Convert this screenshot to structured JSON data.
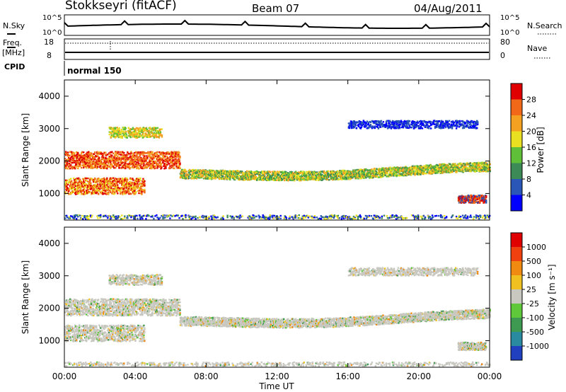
{
  "header": {
    "title": "Stokkseyri (fitACF)",
    "beam": "Beam 07",
    "date": "04/Aug/2011"
  },
  "status_panels": {
    "nsky_label": "N.Sky",
    "nsky_ticks": [
      "10^5",
      "10^0"
    ],
    "nsearch_label": "N.Search",
    "nsearch_ticks": [
      "10^5",
      "10^0"
    ],
    "freq_label": "Freq.",
    "freq_unit": "[MHz]",
    "freq_ticks": [
      "18",
      "8"
    ],
    "nave_label": "Nave",
    "nave_ticks": [
      "80",
      "0"
    ],
    "cpid_label": "CPID",
    "cpid_value": "normal 150"
  },
  "chart_data": [
    {
      "type": "heatmap",
      "name": "power",
      "ylabel": "Slant Range [km]",
      "xlabel": "Time UT",
      "xlim_hours": [
        0,
        24
      ],
      "ylim_km": [
        180,
        4500
      ],
      "yticks": [
        "4000",
        "3000",
        "2000",
        "1000"
      ],
      "xticks": [
        "00:00",
        "04:00",
        "08:00",
        "12:00",
        "16:00",
        "20:00",
        "00:00"
      ],
      "colorbar": {
        "label": "Power [dB]",
        "ticks": [
          "28",
          "24",
          "20",
          "16",
          "12",
          "8",
          "4"
        ],
        "colors": [
          "#0000ff",
          "#2a56b8",
          "#3c8a56",
          "#60bf38",
          "#e8e020",
          "#f4a020",
          "#f06818",
          "#e00000"
        ]
      }
    },
    {
      "type": "heatmap",
      "name": "velocity",
      "ylabel": "Slant Range [km]",
      "xlabel": "Time UT",
      "xlim_hours": [
        0,
        24
      ],
      "ylim_km": [
        180,
        4500
      ],
      "yticks": [
        "4000",
        "3000",
        "2000",
        "1000"
      ],
      "xticks": [
        "00:00",
        "04:00",
        "08:00",
        "12:00",
        "16:00",
        "20:00",
        "00:00"
      ],
      "colorbar": {
        "label": "Velocity [m s⁻¹]",
        "ticks": [
          "1000",
          "500",
          "100",
          "25",
          "-25",
          "-100",
          "-500",
          "-1000"
        ],
        "colors": [
          "#2040c0",
          "#2a8aa0",
          "#3e9a50",
          "#5ec83a",
          "#c8c8c0",
          "#f0c020",
          "#f08a10",
          "#f04010",
          "#e00000"
        ]
      }
    }
  ]
}
